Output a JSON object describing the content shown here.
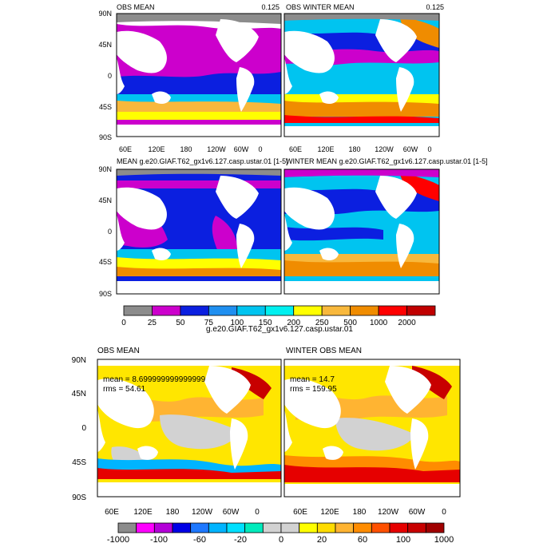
{
  "chart_data": [
    {
      "type": "heatmap",
      "id": "obs-mean",
      "title": "OBS MEAN",
      "right_label": "0.125",
      "ylim": [
        -90,
        90
      ],
      "yticks": [
        "90N",
        "45N",
        "0",
        "45S",
        "90S"
      ],
      "xticks": [
        "60E",
        "120E",
        "180",
        "120W",
        "60W",
        "0"
      ],
      "colorbar": "top"
    },
    {
      "type": "heatmap",
      "id": "obs-winter-mean",
      "title": "OBS WINTER MEAN",
      "right_label": "0.125",
      "ylim": [
        -90,
        90
      ],
      "xticks": [
        "60E",
        "120E",
        "180",
        "120W",
        "60W",
        "0"
      ],
      "colorbar": "top"
    },
    {
      "type": "heatmap",
      "id": "model-mean",
      "title": "MEAN g.e20.GIAF.T62_gx1v6.127.casp.ustar.01 [1-5]",
      "ylim": [
        -90,
        90
      ],
      "yticks": [
        "90N",
        "45N",
        "0",
        "45S",
        "90S"
      ],
      "colorbar": "top"
    },
    {
      "type": "heatmap",
      "id": "model-winter-mean",
      "title": "WINTER MEAN g.e20.GIAF.T62_gx1v6.127.casp.ustar.01 [1-5]",
      "ylim": [
        -90,
        90
      ],
      "colorbar": "top"
    },
    {
      "type": "heatmap",
      "id": "diff-mean",
      "title": "OBS MEAN",
      "stats": [
        "mean = 8.699999999999999",
        "rms = 54.61"
      ],
      "ylim": [
        -90,
        90
      ],
      "yticks": [
        "90N",
        "45N",
        "0",
        "45S",
        "90S"
      ],
      "xticks": [
        "60E",
        "120E",
        "180",
        "120W",
        "60W",
        "0"
      ],
      "colorbar": "bottom"
    },
    {
      "type": "heatmap",
      "id": "diff-winter-mean",
      "title": "WINTER OBS MEAN",
      "stats": [
        "mean = 14.7",
        "rms = 159.95"
      ],
      "ylim": [
        -90,
        90
      ],
      "xticks": [
        "60E",
        "120E",
        "180",
        "120W",
        "60W",
        "0"
      ],
      "colorbar": "bottom"
    }
  ],
  "colorbars": {
    "top": {
      "colors": [
        "#8c8c8c",
        "#cc00cc",
        "#0b1fe0",
        "#1f8ff0",
        "#00c4f0",
        "#00f0f0",
        "#ffff00",
        "#f8b83c",
        "#f08c00",
        "#ff0000",
        "#c00000"
      ],
      "labels": [
        "0",
        "25",
        "50",
        "75",
        "100",
        "150",
        "200",
        "250",
        "500",
        "1000",
        "2000"
      ],
      "caption": "g.e20.GIAF.T62_gx1v6.127.casp.ustar.01"
    },
    "bottom": {
      "colors": [
        "#8c8c8c",
        "#ff00ff",
        "#b400d8",
        "#0000e6",
        "#1e78ff",
        "#00b4ff",
        "#00e0ff",
        "#00ebbc",
        "#d2d2d2",
        "#d2d2d2",
        "#ffff00",
        "#ffdc00",
        "#ffb432",
        "#ff8c00",
        "#ff5000",
        "#e60000",
        "#c80000",
        "#a00000"
      ],
      "labels": [
        "-1000",
        "-100",
        "-60",
        "-20",
        "0",
        "20",
        "60",
        "100",
        "1000"
      ]
    }
  },
  "colors": {
    "ocean_top": "#0b1fe0",
    "ocean_diff": "#ffe600",
    "land": "#ffffff",
    "missing": "#8c8c8c"
  }
}
